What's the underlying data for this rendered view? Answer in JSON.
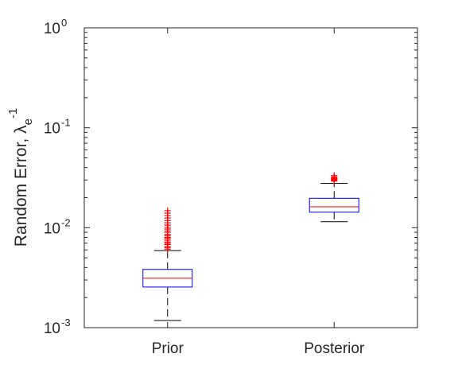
{
  "chart_data": {
    "type": "boxplot",
    "categories": [
      "Prior",
      "Posterior"
    ],
    "ylabel": {
      "prefix": "Random Error, ",
      "symbol": "λ",
      "subscript": "e",
      "superscript": "-1"
    },
    "yscale": "log",
    "ylim": [
      0.001,
      1
    ],
    "yticks": [
      {
        "value": 0.001,
        "base": "10",
        "exponent": "-3"
      },
      {
        "value": 0.01,
        "base": "10",
        "exponent": "-2"
      },
      {
        "value": 0.1,
        "base": "10",
        "exponent": "-1"
      },
      {
        "value": 1,
        "base": "10",
        "exponent": "0"
      }
    ],
    "grid": false,
    "box_style": {
      "box_color": "#0000ff",
      "median_color": "#ff0000",
      "whisker_color": "#000000",
      "outlier_color": "#ff0000"
    },
    "boxes": [
      {
        "name": "Prior",
        "whisker_low": 0.00118,
        "q1": 0.00255,
        "median": 0.00312,
        "q3": 0.00383,
        "whisker_high": 0.0059,
        "outliers": [
          0.0061,
          0.0063,
          0.0065,
          0.0068,
          0.007,
          0.0072,
          0.0075,
          0.0078,
          0.008,
          0.0083,
          0.0086,
          0.009,
          0.0093,
          0.0097,
          0.0101,
          0.0106,
          0.0112,
          0.0118,
          0.0125,
          0.0132,
          0.014,
          0.0148
        ]
      },
      {
        "name": "Posterior",
        "whisker_low": 0.0115,
        "q1": 0.0143,
        "median": 0.0162,
        "q3": 0.0197,
        "whisker_high": 0.0278,
        "outliers": [
          0.0293,
          0.0298,
          0.0302,
          0.0306,
          0.031,
          0.0315,
          0.0322,
          0.0333
        ]
      }
    ]
  }
}
